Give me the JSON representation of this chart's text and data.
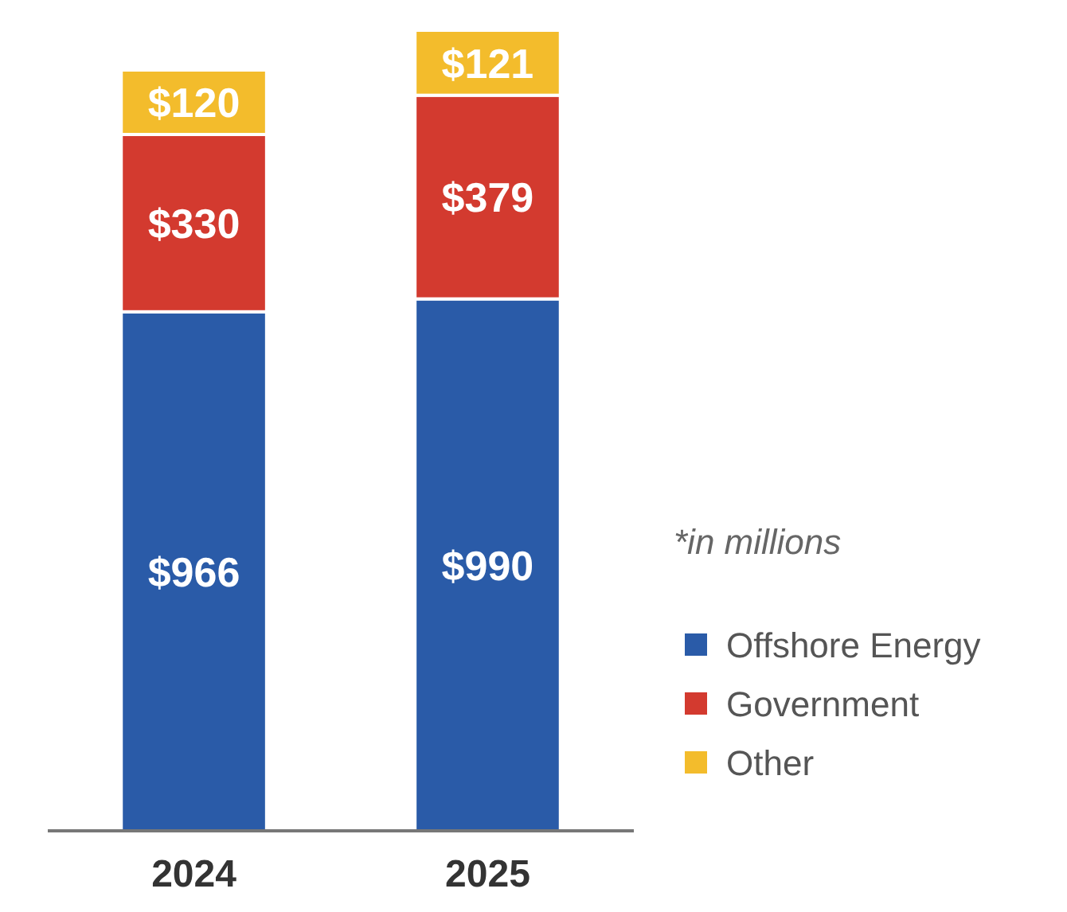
{
  "chart_data": {
    "type": "bar",
    "stacked": true,
    "categories": [
      "2024",
      "2025"
    ],
    "series": [
      {
        "name": "Offshore Energy",
        "color": "#2a5ba8",
        "values": [
          966,
          990
        ],
        "value_labels": [
          "$966",
          "$990"
        ]
      },
      {
        "name": "Government",
        "color": "#d33a2f",
        "values": [
          330,
          379
        ],
        "value_labels": [
          "$330",
          "$379"
        ]
      },
      {
        "name": "Other",
        "color": "#f3bc2c",
        "values": [
          120,
          121
        ],
        "value_labels": [
          "$120",
          "$121"
        ]
      }
    ],
    "legend": "right",
    "annotations": [
      "*in millions"
    ]
  }
}
